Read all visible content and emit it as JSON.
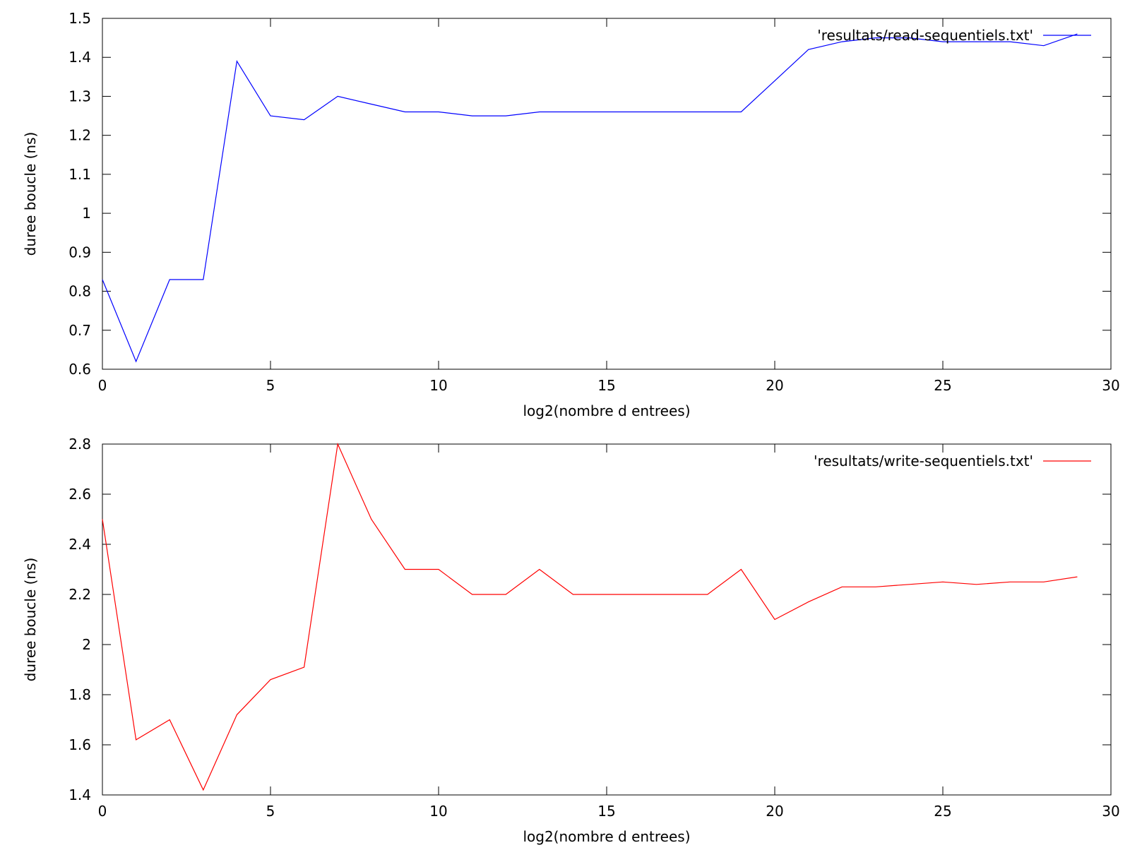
{
  "chart_data": [
    {
      "type": "line",
      "title": "",
      "xlabel": "log2(nombre d entrees)",
      "ylabel": "duree boucle (ns)",
      "xlim": [
        0,
        30
      ],
      "ylim": [
        0.6,
        1.5
      ],
      "xticks": [
        0,
        5,
        10,
        15,
        20,
        25,
        30
      ],
      "yticks": [
        0.6,
        0.7,
        0.8,
        0.9,
        1,
        1.1,
        1.2,
        1.3,
        1.4,
        1.5
      ],
      "grid": false,
      "legend_position": "top-right",
      "series": [
        {
          "name": "'resultats/read-sequentiels.txt'",
          "color": "#0000ff",
          "x": [
            0,
            1,
            2,
            3,
            4,
            5,
            6,
            7,
            8,
            9,
            10,
            11,
            12,
            13,
            14,
            15,
            16,
            17,
            18,
            19,
            20,
            21,
            22,
            23,
            24,
            25,
            26,
            27,
            28,
            29
          ],
          "y": [
            0.83,
            0.62,
            0.83,
            0.83,
            1.39,
            1.25,
            1.24,
            1.3,
            1.28,
            1.26,
            1.26,
            1.25,
            1.25,
            1.26,
            1.26,
            1.26,
            1.26,
            1.26,
            1.26,
            1.26,
            1.34,
            1.42,
            1.44,
            1.45,
            1.45,
            1.44,
            1.44,
            1.44,
            1.43,
            1.46
          ]
        }
      ]
    },
    {
      "type": "line",
      "title": "",
      "xlabel": "log2(nombre d entrees)",
      "ylabel": "duree boucle (ns)",
      "xlim": [
        0,
        30
      ],
      "ylim": [
        1.4,
        2.8
      ],
      "xticks": [
        0,
        5,
        10,
        15,
        20,
        25,
        30
      ],
      "yticks": [
        1.4,
        1.6,
        1.8,
        2,
        2.2,
        2.4,
        2.6,
        2.8
      ],
      "grid": false,
      "legend_position": "top-right",
      "series": [
        {
          "name": "'resultats/write-sequentiels.txt'",
          "color": "#ff0000",
          "x": [
            0,
            1,
            2,
            3,
            4,
            5,
            6,
            7,
            8,
            9,
            10,
            11,
            12,
            13,
            14,
            15,
            16,
            17,
            18,
            19,
            20,
            21,
            22,
            23,
            24,
            25,
            26,
            27,
            28,
            29
          ],
          "y": [
            2.5,
            1.62,
            1.7,
            1.42,
            1.72,
            1.86,
            1.91,
            2.8,
            2.5,
            2.3,
            2.3,
            2.2,
            2.2,
            2.3,
            2.2,
            2.2,
            2.2,
            2.2,
            2.2,
            2.3,
            2.1,
            2.17,
            2.23,
            2.23,
            2.24,
            2.25,
            2.24,
            2.25,
            2.25,
            2.27
          ]
        }
      ]
    }
  ]
}
